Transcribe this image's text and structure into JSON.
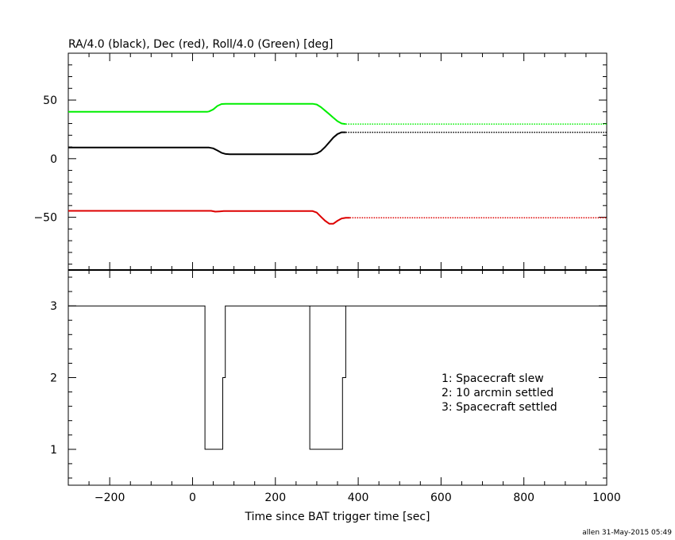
{
  "footer": "allen 31-May-2015 05:49",
  "chart_data": [
    {
      "type": "line",
      "title": "RA/4.0 (black), Dec (red), Roll/4.0 (Green) [deg]",
      "xlim": [
        -300,
        1000
      ],
      "ylim": [
        -95,
        90
      ],
      "yticks": [
        -50,
        0,
        50
      ],
      "yticklabels": [
        "−50",
        "0",
        "50"
      ],
      "grid": false,
      "series": [
        {
          "color": "#00ee00",
          "style": "solid",
          "x": [
            -300,
            35,
            40,
            50,
            60,
            70,
            80,
            290,
            300,
            310,
            320,
            330,
            340,
            350,
            360,
            370
          ],
          "y": [
            40,
            40,
            40.3,
            42,
            45,
            46.6,
            46.8,
            46.8,
            46.2,
            44,
            41,
            38,
            35,
            32,
            30,
            29.5
          ]
        },
        {
          "color": "#00ee00",
          "style": "dotted",
          "x": [
            370,
            1000
          ],
          "y": [
            29.5,
            29.5
          ]
        },
        {
          "color": "#000000",
          "style": "solid",
          "x": [
            -300,
            40,
            50,
            60,
            70,
            80,
            90,
            290,
            300,
            310,
            320,
            330,
            340,
            350,
            360,
            370
          ],
          "y": [
            9.5,
            9.5,
            8.8,
            7,
            5,
            4,
            3.8,
            3.8,
            4.5,
            6.5,
            10,
            14,
            18,
            21,
            22.5,
            22.5
          ]
        },
        {
          "color": "#000000",
          "style": "dotted",
          "x": [
            370,
            1000
          ],
          "y": [
            22.5,
            22.5
          ]
        },
        {
          "color": "#dd0000",
          "style": "solid",
          "x": [
            -300,
            45,
            55,
            65,
            75,
            290,
            300,
            310,
            320,
            330,
            340,
            350,
            360,
            370,
            380
          ],
          "y": [
            -44.5,
            -44.5,
            -45.2,
            -45,
            -44.7,
            -44.7,
            -46,
            -49.5,
            -53,
            -55.5,
            -55.5,
            -53,
            -51,
            -50.5,
            -50.5
          ]
        },
        {
          "color": "#dd0000",
          "style": "dotted",
          "x": [
            380,
            1000
          ],
          "y": [
            -50.5,
            -50.5
          ]
        }
      ]
    },
    {
      "type": "line",
      "step": true,
      "xlabel": "Time since BAT trigger time [sec]",
      "xlim": [
        -300,
        1000
      ],
      "ylim": [
        0.5,
        3.5
      ],
      "xticks": [
        -200,
        0,
        200,
        400,
        600,
        800,
        1000
      ],
      "xticklabels": [
        "−200",
        "0",
        "200",
        "400",
        "600",
        "800",
        "1000"
      ],
      "yticks": [
        1,
        2,
        3
      ],
      "yticklabels": [
        "1",
        "2",
        "3"
      ],
      "grid": false,
      "legend_position": "right",
      "legend": [
        "1: Spacecraft slew",
        "2: 10 arcmin settled",
        "3: Spacecraft settled"
      ],
      "series": [
        {
          "color": "#000000",
          "x": [
            -300,
            30,
            30,
            73,
            73,
            79,
            79,
            1000
          ],
          "y": [
            3,
            3,
            1,
            1,
            2,
            2,
            3,
            3
          ]
        },
        {
          "color": "#000000",
          "x": [
            283,
            283,
            362,
            362,
            370,
            370
          ],
          "y": [
            3,
            1,
            1,
            2,
            2,
            3
          ]
        }
      ]
    }
  ]
}
